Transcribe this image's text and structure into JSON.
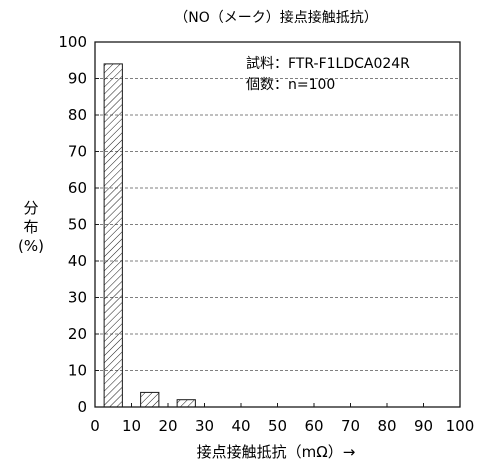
{
  "chart_data": {
    "type": "bar",
    "title": "（NO（メーク）接点接触抵抗）",
    "xlabel": "接点接触抵抗（mΩ）→",
    "ylabel_lines": [
      "分",
      "布",
      "(%)"
    ],
    "annotations": [
      "試料：FTR-F1LDCA024R",
      "個数：n=100"
    ],
    "xlim": [
      0,
      100
    ],
    "ylim": [
      0,
      100
    ],
    "xticks": [
      "0",
      "10",
      "20",
      "30",
      "40",
      "50",
      "60",
      "70",
      "80",
      "90",
      "100"
    ],
    "yticks": [
      "0",
      "10",
      "20",
      "30",
      "40",
      "50",
      "60",
      "70",
      "80",
      "90",
      "100"
    ],
    "bins": [
      {
        "x0": 2.5,
        "x1": 7.5,
        "value": 94
      },
      {
        "x0": 12.5,
        "x1": 17.5,
        "value": 4
      },
      {
        "x0": 22.5,
        "x1": 27.5,
        "value": 2
      }
    ],
    "grid": "horizontal-dashed",
    "colors": {
      "bar_fill": "hatched",
      "axis": "#1a1a1a",
      "grid": "#555555"
    }
  }
}
